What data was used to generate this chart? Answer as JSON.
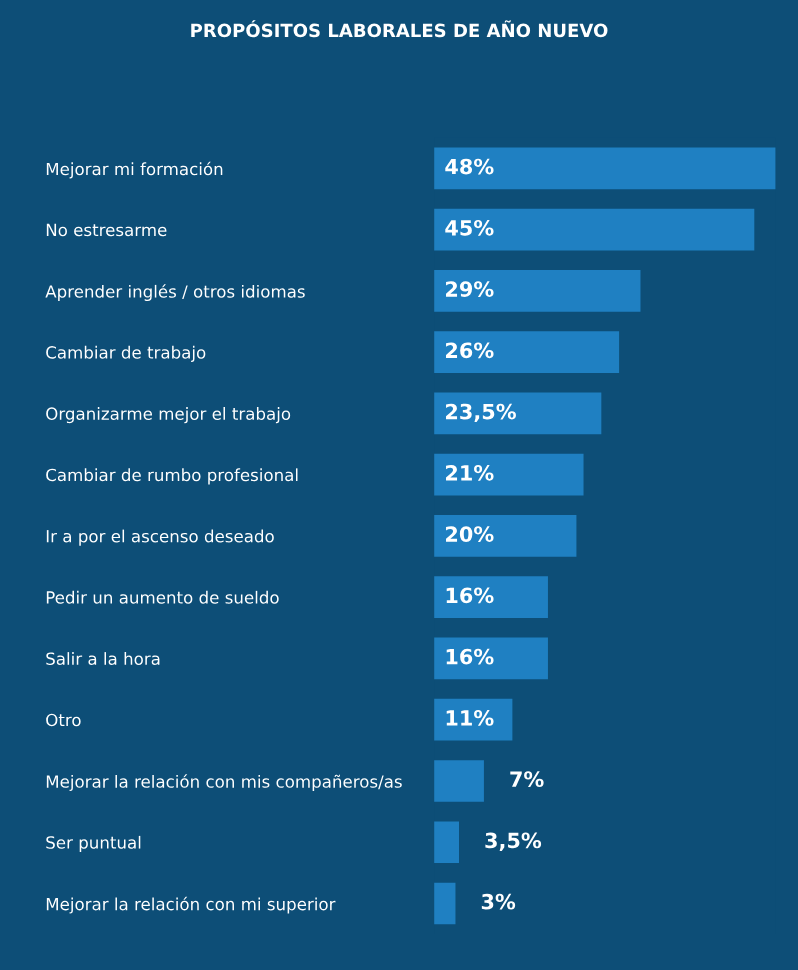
{
  "chart_data": {
    "type": "bar",
    "orientation": "horizontal",
    "title": "PROPÓSITOS LABORALES DE AÑO NUEVO",
    "categories": [
      "Mejorar mi formación",
      "No estresarme",
      "Aprender inglés / otros idiomas",
      "Cambiar de trabajo",
      "Organizarme mejor el trabajo",
      "Cambiar de rumbo profesional",
      "Ir a por el ascenso deseado",
      "Pedir un aumento de sueldo",
      "Salir a la hora",
      "Otro",
      "Mejorar la relación con mis compañeros/as",
      "Ser puntual",
      "Mejorar la relación con mi superior"
    ],
    "values": [
      48,
      45,
      29,
      26,
      23.5,
      21,
      20,
      16,
      16,
      11,
      7,
      3.5,
      3
    ],
    "value_labels": [
      "48%",
      "45%",
      "29%",
      "26%",
      "23,5%",
      "21%",
      "20%",
      "16%",
      "16%",
      "11%",
      "7%",
      "3,5%",
      "3%"
    ],
    "color": "#1f80c2",
    "grid": false,
    "legend": false
  }
}
